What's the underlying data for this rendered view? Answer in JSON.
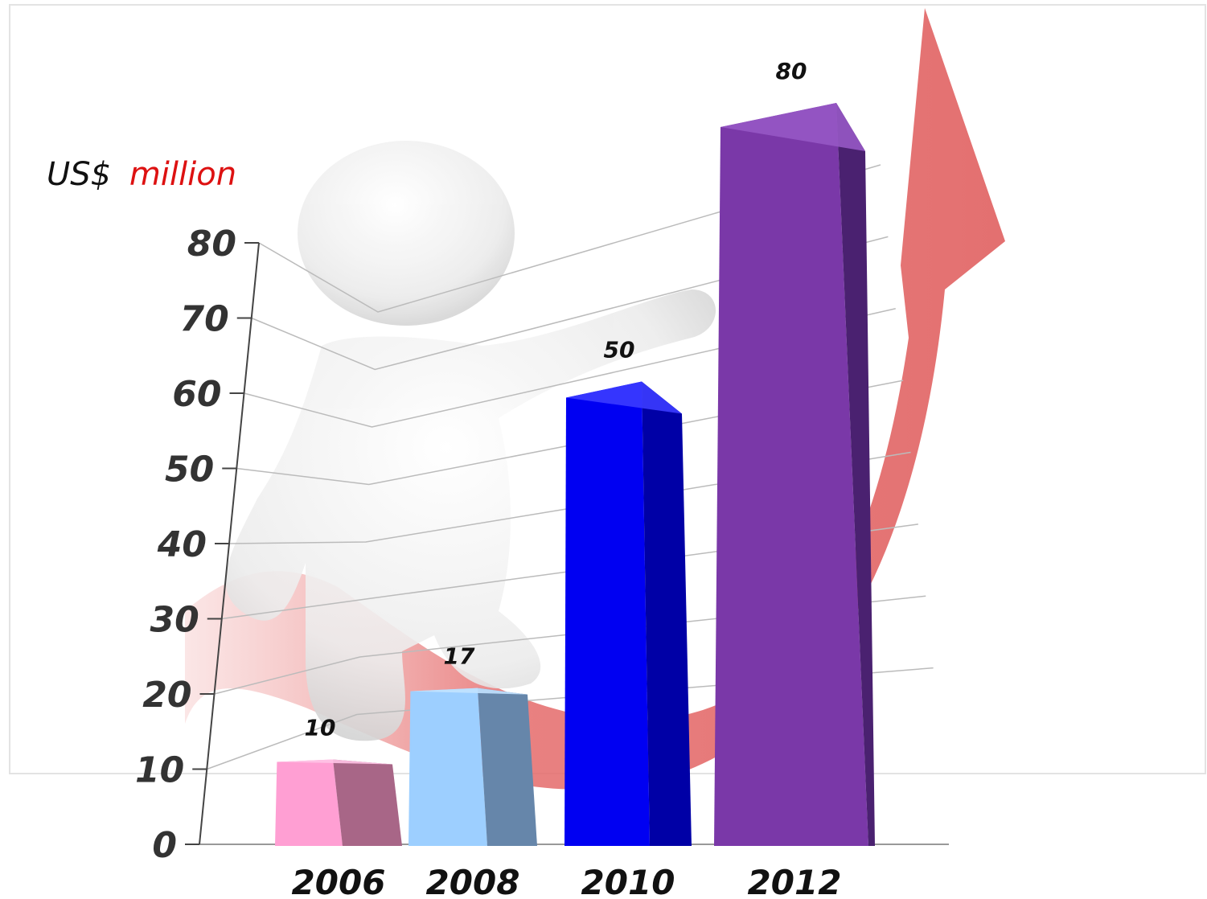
{
  "chart_data": {
    "type": "bar",
    "unit_prefix": "US$",
    "unit_suffix": "million",
    "categories": [
      "2006",
      "2008",
      "2010",
      "2012"
    ],
    "values": [
      10,
      17,
      50,
      80
    ],
    "data_labels": [
      "10",
      "17",
      "50",
      "80"
    ],
    "yticks": [
      "0",
      "10",
      "20",
      "30",
      "40",
      "50",
      "60",
      "70",
      "80"
    ],
    "ylim": [
      0,
      80
    ],
    "grid": true,
    "bar_colors": [
      {
        "front": "#ff9fd3",
        "side": "#a86687",
        "top": "#ffc3e6"
      },
      {
        "front": "#9dcfff",
        "side": "#6686aa",
        "top": "#c2e2ff"
      },
      {
        "front": "#0000f2",
        "side": "#0000a6",
        "top": "#3b3bff"
      },
      {
        "front": "#7a38a8",
        "side": "#4a2170",
        "top": "#9658c4"
      }
    ],
    "colors": {
      "unit_prefix": "#111111",
      "unit_suffix": "#dd1111",
      "arrow": "#e76a6a",
      "grid": "#bbbbbb"
    }
  }
}
